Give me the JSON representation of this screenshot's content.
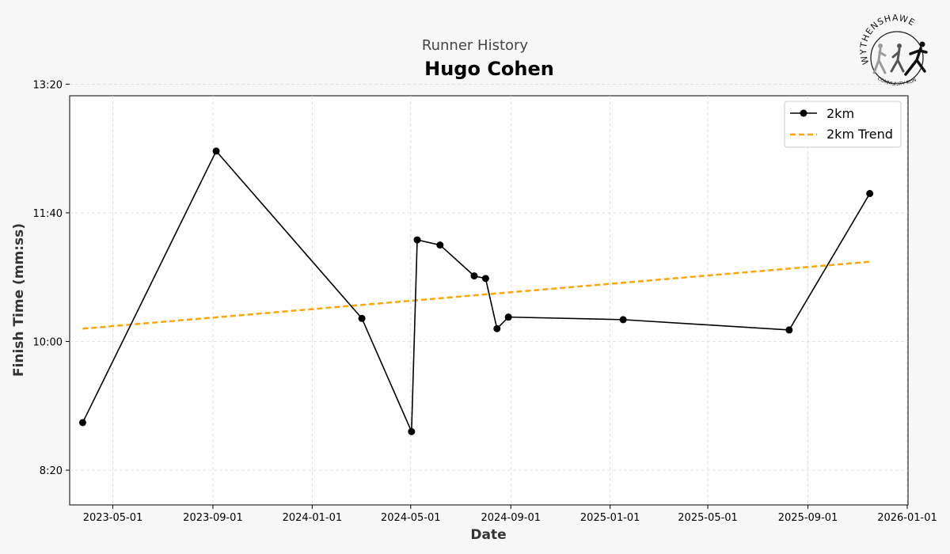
{
  "header": {
    "subtitle": "Runner History",
    "title": "Hugo Cohen"
  },
  "logo": {
    "text_top": "WYTHENSHAWE",
    "text_bottom": "COMMUNITY RUN"
  },
  "chart_data": {
    "type": "line",
    "xlabel": "Date",
    "ylabel": "Finish Time (mm:ss)",
    "x_ticks": [
      "2023-05-01",
      "2023-09-01",
      "2024-01-01",
      "2024-05-01",
      "2024-09-01",
      "2025-01-01",
      "2025-05-01",
      "2025-09-01",
      "2026-01-01"
    ],
    "y_ticks": [
      "8:20",
      "10:00",
      "11:40",
      "13:20"
    ],
    "xlim": [
      "2023-03-09",
      "2026-01-02"
    ],
    "ylim_seconds": [
      473,
      791
    ],
    "grid": true,
    "legend_position": "top-right",
    "colors": {
      "series": "#000000",
      "trend": "#FFA500"
    },
    "series": [
      {
        "name": "2km",
        "style": "line-with-markers",
        "points": [
          {
            "date": "2023-03-25",
            "time": "8:57"
          },
          {
            "date": "2023-09-05",
            "time": "12:28"
          },
          {
            "date": "2024-03-02",
            "time": "10:18"
          },
          {
            "date": "2024-05-02",
            "time": "8:50"
          },
          {
            "date": "2024-05-09",
            "time": "11:19"
          },
          {
            "date": "2024-06-06",
            "time": "11:15"
          },
          {
            "date": "2024-07-18",
            "time": "10:51"
          },
          {
            "date": "2024-08-01",
            "time": "10:49"
          },
          {
            "date": "2024-08-15",
            "time": "10:10"
          },
          {
            "date": "2024-08-29",
            "time": "10:19"
          },
          {
            "date": "2025-01-17",
            "time": "10:17"
          },
          {
            "date": "2025-08-09",
            "time": "10:09"
          },
          {
            "date": "2025-11-16",
            "time": "11:55"
          }
        ]
      },
      {
        "name": "2km Trend",
        "style": "dashed",
        "points": [
          {
            "date": "2023-03-25",
            "time": "10:10"
          },
          {
            "date": "2025-11-16",
            "time": "11:02"
          }
        ]
      }
    ]
  }
}
